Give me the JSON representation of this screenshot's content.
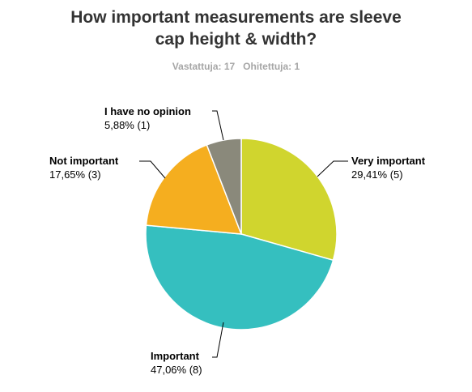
{
  "header": {
    "title_line1": "How important measurements are sleeve",
    "title_line2": "cap height & width?",
    "answered": "Vastattuja: 17",
    "skipped": "Ohitettuja: 1"
  },
  "chart_data": {
    "type": "pie",
    "title": "How important measurements are sleeve cap height & width?",
    "slices": [
      {
        "label": "Very important",
        "percent": 29.41,
        "count": 5,
        "value_label": "29,41% (5)",
        "color": "#d0d52e"
      },
      {
        "label": "Important",
        "percent": 47.06,
        "count": 8,
        "value_label": "47,06% (8)",
        "color": "#35bfbf"
      },
      {
        "label": "Not important",
        "percent": 17.65,
        "count": 3,
        "value_label": "17,65% (3)",
        "color": "#f5ae1f"
      },
      {
        "label": "I have no opinion",
        "percent": 5.88,
        "count": 1,
        "value_label": "5,88% (1)",
        "color": "#8a897b"
      }
    ]
  }
}
